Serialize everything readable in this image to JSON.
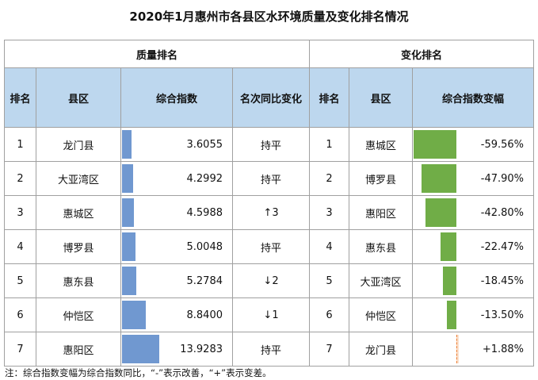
{
  "title": "2020年1月惠州市各县区水环境质量及变化排名情况",
  "table": {
    "group_headers": [
      "质量排名",
      "变化排名"
    ],
    "headers": [
      "排名",
      "县区",
      "综合指数",
      "名次同比变化",
      "排名",
      "县区",
      "综合指数变幅"
    ],
    "rows": [
      [
        "1",
        "龙门县",
        "3.6055",
        "持平",
        "1",
        "惠城区",
        "-59.56%"
      ],
      [
        "2",
        "大亚湾区",
        "4.2992",
        "持平",
        "2",
        "博罗县",
        "-47.90%"
      ],
      [
        "3",
        "惠城区",
        "4.5988",
        "↑3",
        "3",
        "惠阳区",
        "-42.80%"
      ],
      [
        "4",
        "博罗县",
        "5.0048",
        "持平",
        "4",
        "惠东县",
        "-22.47%"
      ],
      [
        "5",
        "惠东县",
        "5.2784",
        "↓2",
        "5",
        "大亚湾区",
        "-18.45%"
      ],
      [
        "6",
        "仲恺区",
        "8.8400",
        "↓1",
        "6",
        "仲恺区",
        "-13.50%"
      ],
      [
        "7",
        "惠阳区",
        "13.9283",
        "持平",
        "7",
        "龙门县",
        "+1.88%"
      ]
    ]
  },
  "note": "注：综合指数变幅为综合指数同比，“-”表示改善，“+”表示变差。"
}
